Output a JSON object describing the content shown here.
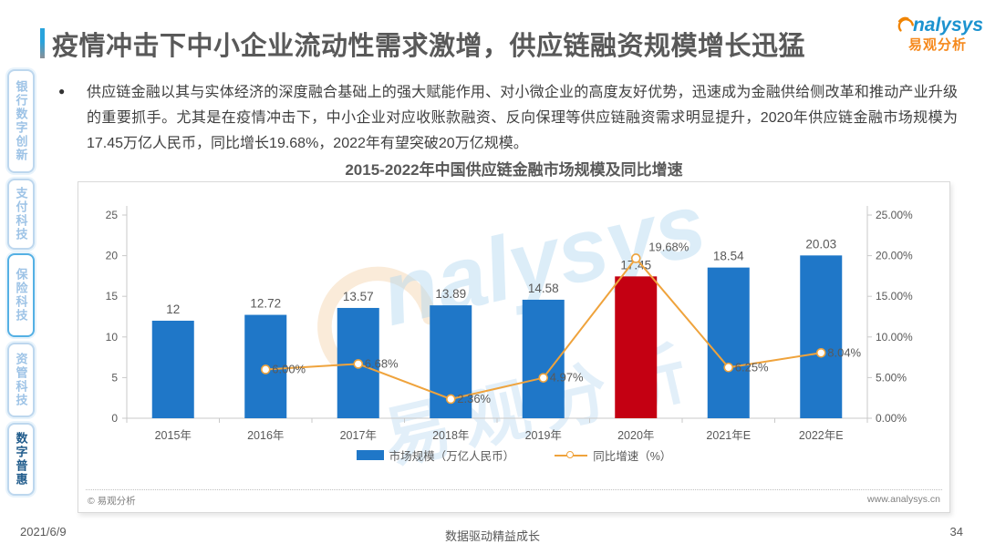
{
  "header": {
    "title": "疫情冲击下中小企业流动性需求激增，供应链融资规模增长迅猛",
    "logo": {
      "wordmark": "nalysys",
      "wordmark_cn": "易观分析"
    }
  },
  "sidebar": {
    "items": [
      {
        "label": "银行数字创新",
        "state": "normal"
      },
      {
        "label": "支付科技",
        "state": "normal"
      },
      {
        "label": "保险科技",
        "state": "highlighted"
      },
      {
        "label": "资管科技",
        "state": "normal"
      },
      {
        "label": "数字普惠",
        "state": "active"
      }
    ]
  },
  "body": {
    "bullet_text": "供应链金融以其与实体经济的深度融合基础上的强大赋能作用、对小微企业的高度友好优势，迅速成为金融供给侧改革和推动产业升级的重要抓手。尤其是在疫情冲击下，中小企业对应收账款融资、反向保理等供应链融资需求明显提升，2020年供应链金融市场规模为17.45万亿人民币，同比增长19.68%，2022年有望突破20万亿规模。"
  },
  "chart_data": {
    "type": "bar",
    "title": "2015-2022年中国供应链金融市场规模及同比增速",
    "categories": [
      "2015年",
      "2016年",
      "2017年",
      "2018年",
      "2019年",
      "2020年",
      "2021年E",
      "2022年E"
    ],
    "series": [
      {
        "name": "市场规模（万亿人民币）",
        "type": "bar",
        "values": [
          12,
          12.72,
          13.57,
          13.89,
          14.58,
          17.45,
          18.54,
          20.03
        ],
        "labels": [
          "12",
          "12.72",
          "13.57",
          "13.89",
          "14.58",
          "17.45",
          "18.54",
          "20.03"
        ]
      },
      {
        "name": "同比增速（%）",
        "type": "line",
        "values": [
          null,
          6.0,
          6.68,
          2.36,
          4.97,
          19.68,
          6.25,
          8.04
        ],
        "labels": [
          "",
          "6.00%",
          "6.68%",
          "2.36%",
          "4.97%",
          "19.68%",
          "6.25%",
          "8.04%"
        ]
      }
    ],
    "left_axis": {
      "min": 0,
      "max": 25,
      "ticks": [
        "0",
        "5",
        "10",
        "15",
        "20",
        "25"
      ]
    },
    "right_axis": {
      "min_label": "0.00%",
      "max_label": "25.00%",
      "ticks": [
        "0.00%",
        "5.00%",
        "10.00%",
        "15.00%",
        "20.00%",
        "25.00%"
      ]
    },
    "highlight_index": 5,
    "bar_color": "#1F77C8",
    "highlight_color": "#C40012",
    "line_color": "#EFA33C",
    "legend_position": "bottom",
    "grid": false
  },
  "chart_footer": {
    "copyright": "© 易观分析",
    "website": "www.analysys.cn"
  },
  "watermark": {
    "text_en": "nalysys",
    "text_cn": "易观分析"
  },
  "footer": {
    "date": "2021/6/9",
    "slogan": "数据驱动精益成长",
    "page": "34"
  }
}
